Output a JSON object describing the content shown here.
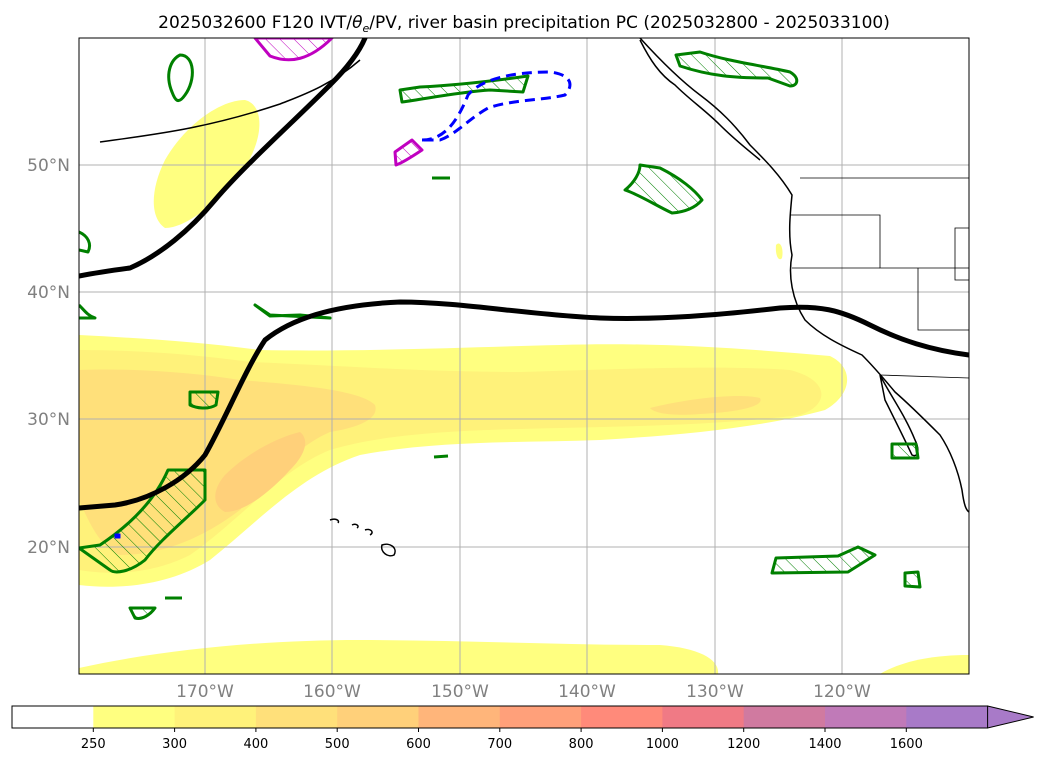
{
  "chart_data": {
    "type": "map",
    "title": "2025032600 F120 IVT/θe/PV, river basin precipitation PC (2025032800 - 2025033100)",
    "title_parts": {
      "prefix": "2025032600 F120 IVT/",
      "theta": "θ",
      "theta_sub": "e",
      "suffix": "/PV, river basin precipitation PC (2025032800 - 2025033100)"
    },
    "longitudes": [
      -170,
      -160,
      -150,
      -140,
      -130,
      -120
    ],
    "longitude_labels": [
      "170°W",
      "160°W",
      "150°W",
      "140°W",
      "130°W",
      "120°W"
    ],
    "latitudes": [
      20,
      30,
      40,
      50
    ],
    "latitude_labels": [
      "20°N",
      "30°N",
      "40°N",
      "50°N"
    ],
    "extent": {
      "lon_min": -180,
      "lon_max": -110,
      "lat_min": 10,
      "lat_max": 60
    },
    "grid": true,
    "colorbar": {
      "levels": [
        250,
        300,
        400,
        500,
        600,
        700,
        800,
        1000,
        1200,
        1400,
        1600
      ],
      "labels": [
        "250",
        "300",
        "400",
        "500",
        "600",
        "700",
        "800",
        "1000",
        "1200",
        "1400",
        "1600"
      ],
      "colors": [
        "#ffffff",
        "#ffff80",
        "#fff27a",
        "#ffe07a",
        "#ffd07a",
        "#ffb57a",
        "#ffa07a",
        "#ff8a7a",
        "#f07a85",
        "#d07aa0",
        "#c07ab8",
        "#a87ac8"
      ],
      "extend": "max"
    },
    "ivt_filled_regions": [
      {
        "name": "main-ar-band",
        "level": 250
      },
      {
        "name": "ar-core-300",
        "level": 300
      },
      {
        "name": "ar-core-400",
        "level": 400
      },
      {
        "name": "ar-core-500",
        "level": 500
      },
      {
        "name": "ne-pacific-ar",
        "level": 250
      },
      {
        "name": "bering-plume",
        "level": 250
      },
      {
        "name": "southern-band",
        "level": 250
      }
    ],
    "theta_e_contours": [
      {
        "name": "northern-jet-line",
        "color": "#000000"
      },
      {
        "name": "southern-front-line",
        "color": "#000000"
      },
      {
        "name": "mid-latitude-line",
        "color": "#000000"
      }
    ],
    "pv_colors": {
      "positive": "#008000",
      "negative": "#0000ff",
      "strong": "#c000c0"
    }
  }
}
